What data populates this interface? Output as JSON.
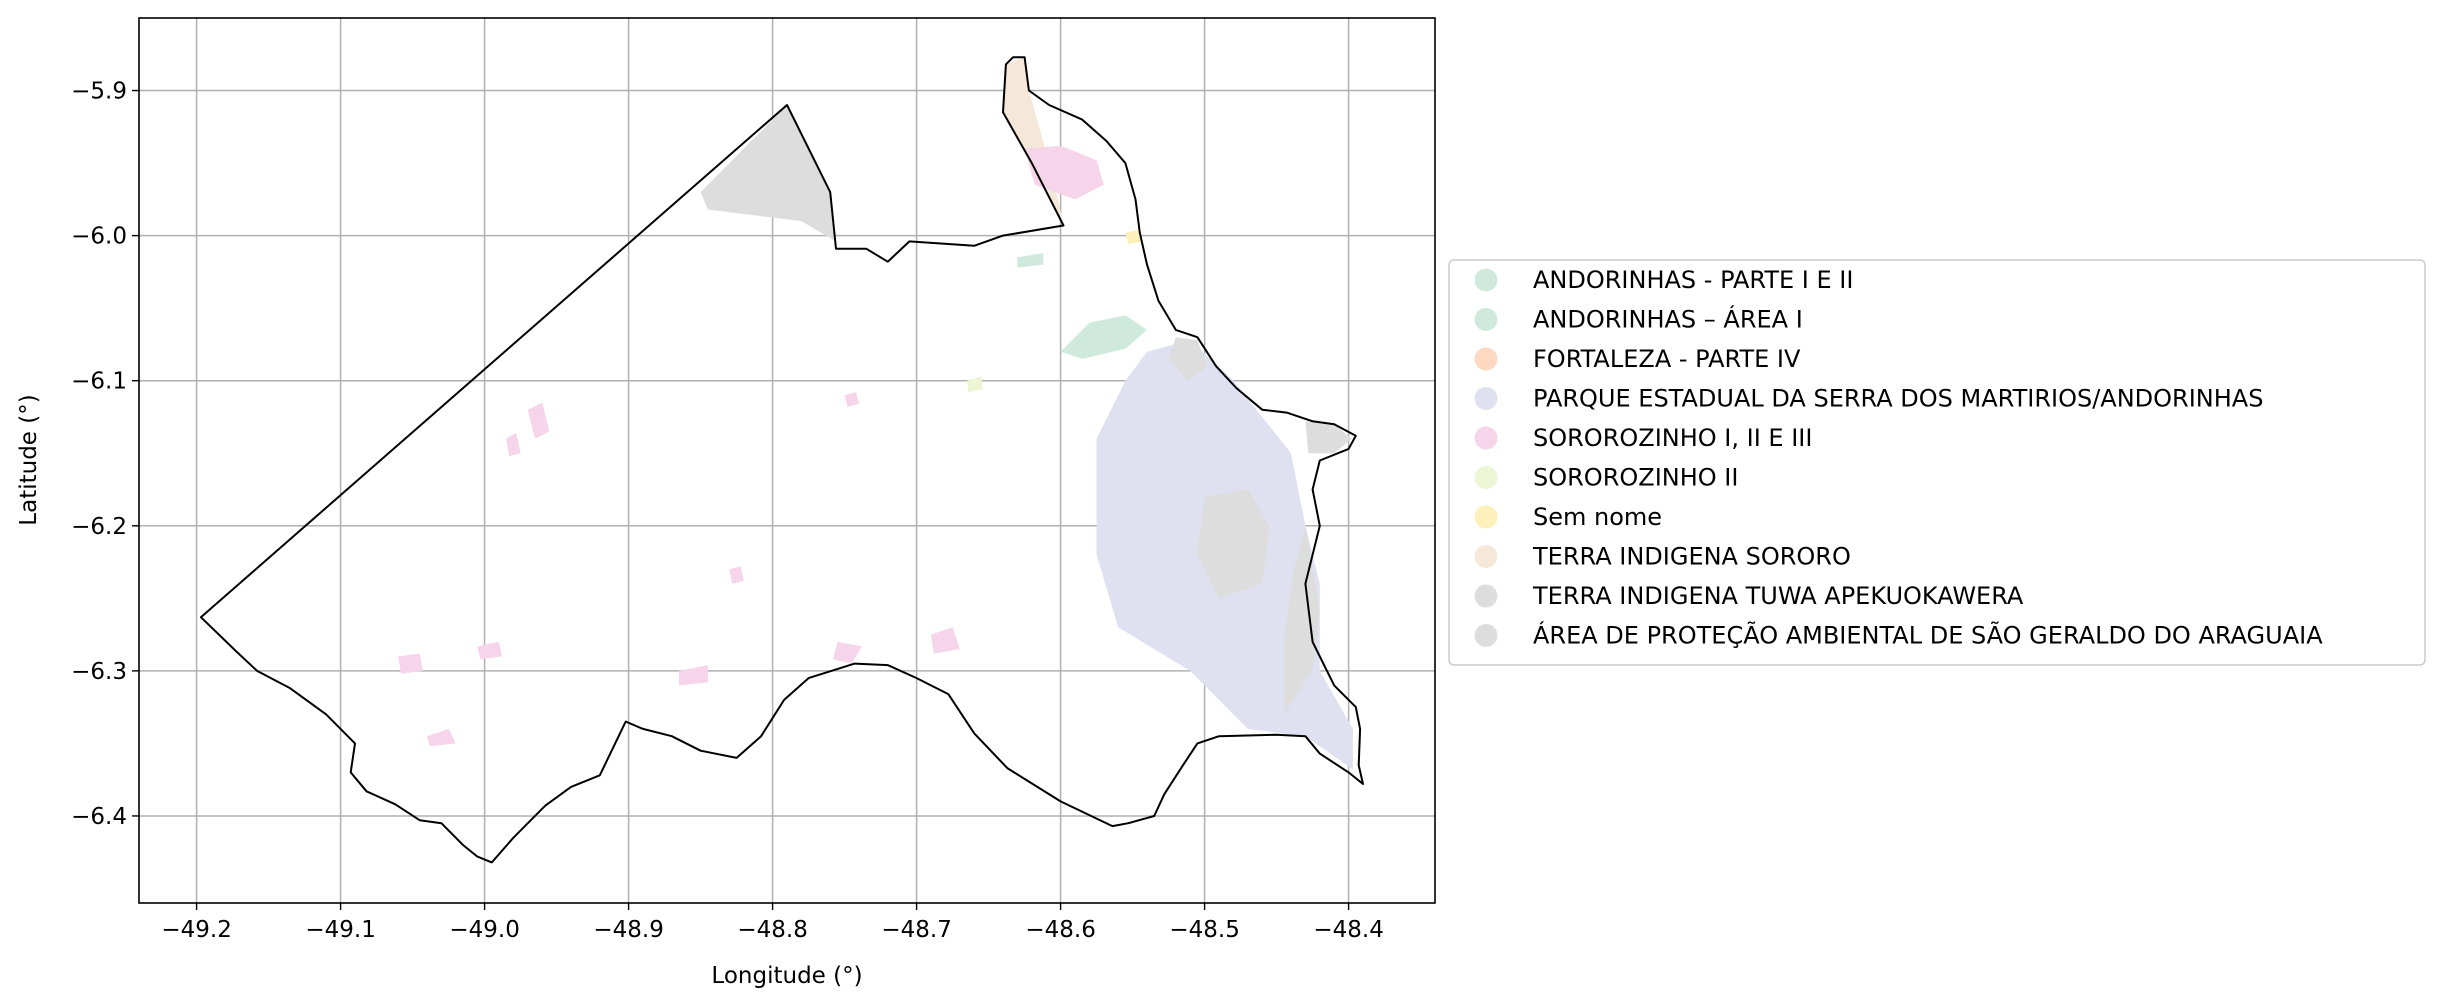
{
  "chart_data": {
    "type": "map",
    "xlabel": "Longitude (°)",
    "ylabel": "Latitude (°)",
    "xlim": [
      -49.24,
      -48.34
    ],
    "ylim": [
      -6.46,
      -5.85
    ],
    "grid": true,
    "legend_position": "right",
    "x_ticks": [
      {
        "value": -49.2,
        "label": "−49.2"
      },
      {
        "value": -49.1,
        "label": "−49.1"
      },
      {
        "value": -49.0,
        "label": "−49.0"
      },
      {
        "value": -48.9,
        "label": "−48.9"
      },
      {
        "value": -48.8,
        "label": "−48.8"
      },
      {
        "value": -48.7,
        "label": "−48.7"
      },
      {
        "value": -48.6,
        "label": "−48.6"
      },
      {
        "value": -48.5,
        "label": "−48.5"
      },
      {
        "value": -48.4,
        "label": "−48.4"
      }
    ],
    "y_ticks": [
      {
        "value": -5.9,
        "label": "−5.9"
      },
      {
        "value": -6.0,
        "label": "−6.0"
      },
      {
        "value": -6.1,
        "label": "−6.1"
      },
      {
        "value": -6.2,
        "label": "−6.2"
      },
      {
        "value": -6.3,
        "label": "−6.3"
      },
      {
        "value": -6.4,
        "label": "−6.4"
      }
    ],
    "legend": [
      {
        "label": "ANDORINHAS - PARTE I E II",
        "color": "#cfeadc"
      },
      {
        "label": "ANDORINHAS – ÁREA I",
        "color": "#cfeadc"
      },
      {
        "label": "FORTALEZA - PARTE IV",
        "color": "#fdd9c2"
      },
      {
        "label": "PARQUE ESTADUAL DA SERRA DOS MARTIRIOS/ANDORINHAS",
        "color": "#dfe1f1"
      },
      {
        "label": "SOROROZINHO I, II E III",
        "color": "#f6d4ea"
      },
      {
        "label": "SOROROZINHO II",
        "color": "#ecf5d4"
      },
      {
        "label": "Sem nome",
        "color": "#fdf0bb"
      },
      {
        "label": "TERRA INDIGENA SORORO",
        "color": "#f6e8d8"
      },
      {
        "label": "TERRA INDIGENA TUWA APEKUOKAWERA",
        "color": "#dddddd"
      },
      {
        "label": "ÁREA DE PROTEÇÃO AMBIENTAL DE SÃO GERALDO DO ARAGUAIA",
        "color": "#dddddd"
      }
    ],
    "boundary": [
      [
        -49.197,
        -6.263
      ],
      [
        -48.79,
        -5.91
      ],
      [
        -48.76,
        -5.97
      ],
      [
        -48.756,
        -6.009
      ],
      [
        -48.735,
        -6.009
      ],
      [
        -48.72,
        -6.018
      ],
      [
        -48.705,
        -6.004
      ],
      [
        -48.66,
        -6.007
      ],
      [
        -48.64,
        -6.0
      ],
      [
        -48.598,
        -5.993
      ],
      [
        -48.62,
        -5.95
      ],
      [
        -48.64,
        -5.915
      ],
      [
        -48.638,
        -5.882
      ],
      [
        -48.633,
        -5.877
      ],
      [
        -48.625,
        -5.877
      ],
      [
        -48.622,
        -5.9
      ],
      [
        -48.608,
        -5.91
      ],
      [
        -48.585,
        -5.92
      ],
      [
        -48.568,
        -5.935
      ],
      [
        -48.555,
        -5.95
      ],
      [
        -48.548,
        -5.975
      ],
      [
        -48.545,
        -5.998
      ],
      [
        -48.54,
        -6.02
      ],
      [
        -48.532,
        -6.045
      ],
      [
        -48.52,
        -6.065
      ],
      [
        -48.505,
        -6.07
      ],
      [
        -48.492,
        -6.09
      ],
      [
        -48.478,
        -6.105
      ],
      [
        -48.46,
        -6.12
      ],
      [
        -48.443,
        -6.122
      ],
      [
        -48.425,
        -6.128
      ],
      [
        -48.41,
        -6.13
      ],
      [
        -48.395,
        -6.138
      ],
      [
        -48.4,
        -6.147
      ],
      [
        -48.42,
        -6.155
      ],
      [
        -48.425,
        -6.175
      ],
      [
        -48.42,
        -6.2
      ],
      [
        -48.43,
        -6.24
      ],
      [
        -48.425,
        -6.28
      ],
      [
        -48.41,
        -6.31
      ],
      [
        -48.395,
        -6.325
      ],
      [
        -48.392,
        -6.34
      ],
      [
        -48.393,
        -6.365
      ],
      [
        -48.39,
        -6.378
      ],
      [
        -48.4,
        -6.37
      ],
      [
        -48.42,
        -6.357
      ],
      [
        -48.43,
        -6.345
      ],
      [
        -48.45,
        -6.344
      ],
      [
        -48.49,
        -6.345
      ],
      [
        -48.505,
        -6.35
      ],
      [
        -48.515,
        -6.365
      ],
      [
        -48.528,
        -6.385
      ],
      [
        -48.535,
        -6.4
      ],
      [
        -48.553,
        -6.405
      ],
      [
        -48.564,
        -6.407
      ],
      [
        -48.6,
        -6.39
      ],
      [
        -48.637,
        -6.367
      ],
      [
        -48.66,
        -6.343
      ],
      [
        -48.678,
        -6.316
      ],
      [
        -48.7,
        -6.305
      ],
      [
        -48.72,
        -6.296
      ],
      [
        -48.743,
        -6.295
      ],
      [
        -48.775,
        -6.305
      ],
      [
        -48.792,
        -6.32
      ],
      [
        -48.808,
        -6.345
      ],
      [
        -48.825,
        -6.36
      ],
      [
        -48.85,
        -6.355
      ],
      [
        -48.87,
        -6.345
      ],
      [
        -48.89,
        -6.34
      ],
      [
        -48.902,
        -6.335
      ],
      [
        -48.92,
        -6.372
      ],
      [
        -48.94,
        -6.38
      ],
      [
        -48.958,
        -6.393
      ],
      [
        -48.98,
        -6.415
      ],
      [
        -48.995,
        -6.432
      ],
      [
        -49.005,
        -6.428
      ],
      [
        -49.015,
        -6.42
      ],
      [
        -49.03,
        -6.405
      ],
      [
        -49.045,
        -6.403
      ],
      [
        -49.062,
        -6.392
      ],
      [
        -49.082,
        -6.383
      ],
      [
        -49.093,
        -6.37
      ],
      [
        -49.09,
        -6.35
      ],
      [
        -49.11,
        -6.33
      ],
      [
        -49.135,
        -6.312
      ],
      [
        -49.158,
        -6.3
      ],
      [
        -49.172,
        -6.287
      ],
      [
        -49.197,
        -6.263
      ]
    ],
    "areas": [
      {
        "name": "TERRA INDIGENA TUWA APEKUOKAWERA",
        "color": "#dddddd",
        "points": [
          [
            -48.85,
            -5.97
          ],
          [
            -48.79,
            -5.91
          ],
          [
            -48.76,
            -5.97
          ],
          [
            -48.756,
            -6.004
          ],
          [
            -48.78,
            -5.99
          ],
          [
            -48.845,
            -5.982
          ]
        ]
      },
      {
        "name": "TERRA INDIGENA SORORO",
        "color": "#f6e8d8",
        "points": [
          [
            -48.64,
            -5.915
          ],
          [
            -48.638,
            -5.882
          ],
          [
            -48.625,
            -5.877
          ],
          [
            -48.622,
            -5.9
          ],
          [
            -48.605,
            -5.96
          ],
          [
            -48.598,
            -5.993
          ],
          [
            -48.62,
            -5.95
          ]
        ]
      },
      {
        "name": "SOROROZINHO I, II E III",
        "color": "#f6d4ea",
        "points": [
          [
            -48.625,
            -5.94
          ],
          [
            -48.6,
            -5.938
          ],
          [
            -48.575,
            -5.948
          ],
          [
            -48.57,
            -5.965
          ],
          [
            -48.59,
            -5.975
          ],
          [
            -48.618,
            -5.965
          ]
        ]
      },
      {
        "name": "ANDORINHAS - PARTE I E II",
        "color": "#cfeadc",
        "points": [
          [
            -48.6,
            -6.08
          ],
          [
            -48.58,
            -6.06
          ],
          [
            -48.555,
            -6.055
          ],
          [
            -48.54,
            -6.065
          ],
          [
            -48.555,
            -6.078
          ],
          [
            -48.585,
            -6.085
          ]
        ]
      },
      {
        "name": "ANDORINHAS – ÁREA I",
        "color": "#cfeadc",
        "points": [
          [
            -48.63,
            -6.015
          ],
          [
            -48.612,
            -6.012
          ],
          [
            -48.612,
            -6.02
          ],
          [
            -48.63,
            -6.022
          ]
        ]
      },
      {
        "name": "PARQUE ESTADUAL DA SERRA DOS MARTIRIOS/ANDORINHAS",
        "color": "#dfe1f1",
        "points": [
          [
            -48.54,
            -6.08
          ],
          [
            -48.51,
            -6.072
          ],
          [
            -48.48,
            -6.1
          ],
          [
            -48.44,
            -6.15
          ],
          [
            -48.43,
            -6.2
          ],
          [
            -48.42,
            -6.24
          ],
          [
            -48.42,
            -6.3
          ],
          [
            -48.397,
            -6.34
          ],
          [
            -48.397,
            -6.368
          ],
          [
            -48.43,
            -6.345
          ],
          [
            -48.47,
            -6.34
          ],
          [
            -48.51,
            -6.3
          ],
          [
            -48.56,
            -6.27
          ],
          [
            -48.575,
            -6.22
          ],
          [
            -48.575,
            -6.14
          ],
          [
            -48.555,
            -6.1
          ]
        ]
      },
      {
        "name": "ÁREA DE PROTEÇÃO AMBIENTAL DE SÃO GERALDO DO ARAGUAIA",
        "color": "#dddddd",
        "points": [
          [
            -48.5,
            -6.18
          ],
          [
            -48.47,
            -6.175
          ],
          [
            -48.455,
            -6.2
          ],
          [
            -48.46,
            -6.24
          ],
          [
            -48.49,
            -6.25
          ],
          [
            -48.505,
            -6.22
          ]
        ]
      },
      {
        "name": "ÁREA DE PROTEÇÃO AMBIENTAL DE SÃO GERALDO DO ARAGUAIA",
        "color": "#dddddd",
        "points": [
          [
            -48.43,
            -6.2
          ],
          [
            -48.42,
            -6.26
          ],
          [
            -48.425,
            -6.3
          ],
          [
            -48.445,
            -6.33
          ],
          [
            -48.445,
            -6.28
          ],
          [
            -48.438,
            -6.23
          ]
        ]
      },
      {
        "name": "ÁREA DE PROTEÇÃO AMBIENTAL DE SÃO GERALDO DO ARAGUAIA",
        "color": "#dddddd",
        "points": [
          [
            -48.43,
            -6.128
          ],
          [
            -48.41,
            -6.13
          ],
          [
            -48.398,
            -6.14
          ],
          [
            -48.41,
            -6.15
          ],
          [
            -48.428,
            -6.15
          ]
        ]
      },
      {
        "name": "ÁREA DE PROTEÇÃO AMBIENTAL DE SÃO GERALDO DO ARAGUAIA",
        "color": "#dddddd",
        "points": [
          [
            -48.52,
            -6.07
          ],
          [
            -48.505,
            -6.072
          ],
          [
            -48.498,
            -6.09
          ],
          [
            -48.512,
            -6.1
          ],
          [
            -48.525,
            -6.085
          ]
        ]
      },
      {
        "name": "SOROROZINHO I, II E III",
        "color": "#f6d4ea",
        "points": [
          [
            -48.97,
            -6.12
          ],
          [
            -48.96,
            -6.115
          ],
          [
            -48.955,
            -6.135
          ],
          [
            -48.965,
            -6.14
          ]
        ]
      },
      {
        "name": "SOROROZINHO I, II E III",
        "color": "#f6d4ea",
        "points": [
          [
            -48.865,
            -6.3
          ],
          [
            -48.845,
            -6.296
          ],
          [
            -48.845,
            -6.308
          ],
          [
            -48.865,
            -6.31
          ]
        ]
      },
      {
        "name": "SOROROZINHO I, II E III",
        "color": "#f6d4ea",
        "points": [
          [
            -49.04,
            -6.345
          ],
          [
            -49.025,
            -6.34
          ],
          [
            -49.02,
            -6.35
          ],
          [
            -49.038,
            -6.352
          ]
        ]
      },
      {
        "name": "SOROROZINHO I, II E III",
        "color": "#f6d4ea",
        "points": [
          [
            -48.755,
            -6.28
          ],
          [
            -48.738,
            -6.283
          ],
          [
            -48.745,
            -6.295
          ],
          [
            -48.758,
            -6.292
          ]
        ]
      },
      {
        "name": "SOROROZINHO I, II E III",
        "color": "#f6d4ea",
        "points": [
          [
            -48.69,
            -6.275
          ],
          [
            -48.675,
            -6.27
          ],
          [
            -48.67,
            -6.285
          ],
          [
            -48.688,
            -6.288
          ]
        ]
      },
      {
        "name": "SOROROZINHO I, II E III",
        "color": "#f6d4ea",
        "points": [
          [
            -49.06,
            -6.29
          ],
          [
            -49.045,
            -6.288
          ],
          [
            -49.043,
            -6.3
          ],
          [
            -49.058,
            -6.302
          ]
        ]
      },
      {
        "name": "SOROROZINHO I, II E III",
        "color": "#f6d4ea",
        "points": [
          [
            -49.005,
            -6.283
          ],
          [
            -48.99,
            -6.28
          ],
          [
            -48.988,
            -6.29
          ],
          [
            -49.003,
            -6.292
          ]
        ]
      },
      {
        "name": "SOROROZINHO I, II E III",
        "color": "#f6d4ea",
        "points": [
          [
            -48.985,
            -6.14
          ],
          [
            -48.978,
            -6.136
          ],
          [
            -48.975,
            -6.15
          ],
          [
            -48.983,
            -6.152
          ]
        ]
      },
      {
        "name": "SOROROZINHO I, II E III",
        "color": "#f6d4ea",
        "points": [
          [
            -48.83,
            -6.23
          ],
          [
            -48.822,
            -6.228
          ],
          [
            -48.82,
            -6.238
          ],
          [
            -48.828,
            -6.24
          ]
        ]
      },
      {
        "name": "SOROROZINHO I, II E III",
        "color": "#f6d4ea",
        "points": [
          [
            -48.75,
            -6.11
          ],
          [
            -48.742,
            -6.108
          ],
          [
            -48.74,
            -6.116
          ],
          [
            -48.748,
            -6.118
          ]
        ]
      },
      {
        "name": "SOROROZINHO II",
        "color": "#ecf5d4",
        "points": [
          [
            -48.665,
            -6.1
          ],
          [
            -48.655,
            -6.097
          ],
          [
            -48.654,
            -6.106
          ],
          [
            -48.664,
            -6.108
          ]
        ]
      },
      {
        "name": "Sem nome",
        "color": "#fdf0bb",
        "points": [
          [
            -48.555,
            -5.998
          ],
          [
            -48.545,
            -5.996
          ],
          [
            -48.543,
            -6.004
          ],
          [
            -48.553,
            -6.006
          ]
        ]
      }
    ]
  }
}
